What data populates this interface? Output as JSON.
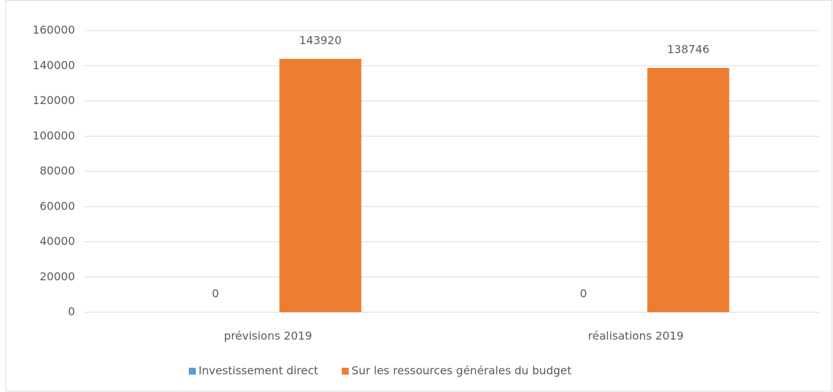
{
  "chart_data": {
    "type": "bar",
    "categories": [
      "prévisions 2019",
      "réalisations 2019"
    ],
    "series": [
      {
        "name": "Investissement direct",
        "color": "#5b9bd5",
        "values": [
          0,
          0
        ]
      },
      {
        "name": "Sur les ressources générales du budget",
        "color": "#ed7d31",
        "values": [
          143920,
          138746
        ]
      }
    ],
    "ylim": [
      0,
      160000
    ],
    "yticks": [
      0,
      20000,
      40000,
      60000,
      80000,
      100000,
      120000,
      140000,
      160000
    ],
    "grid": true,
    "legend": "bottom"
  }
}
